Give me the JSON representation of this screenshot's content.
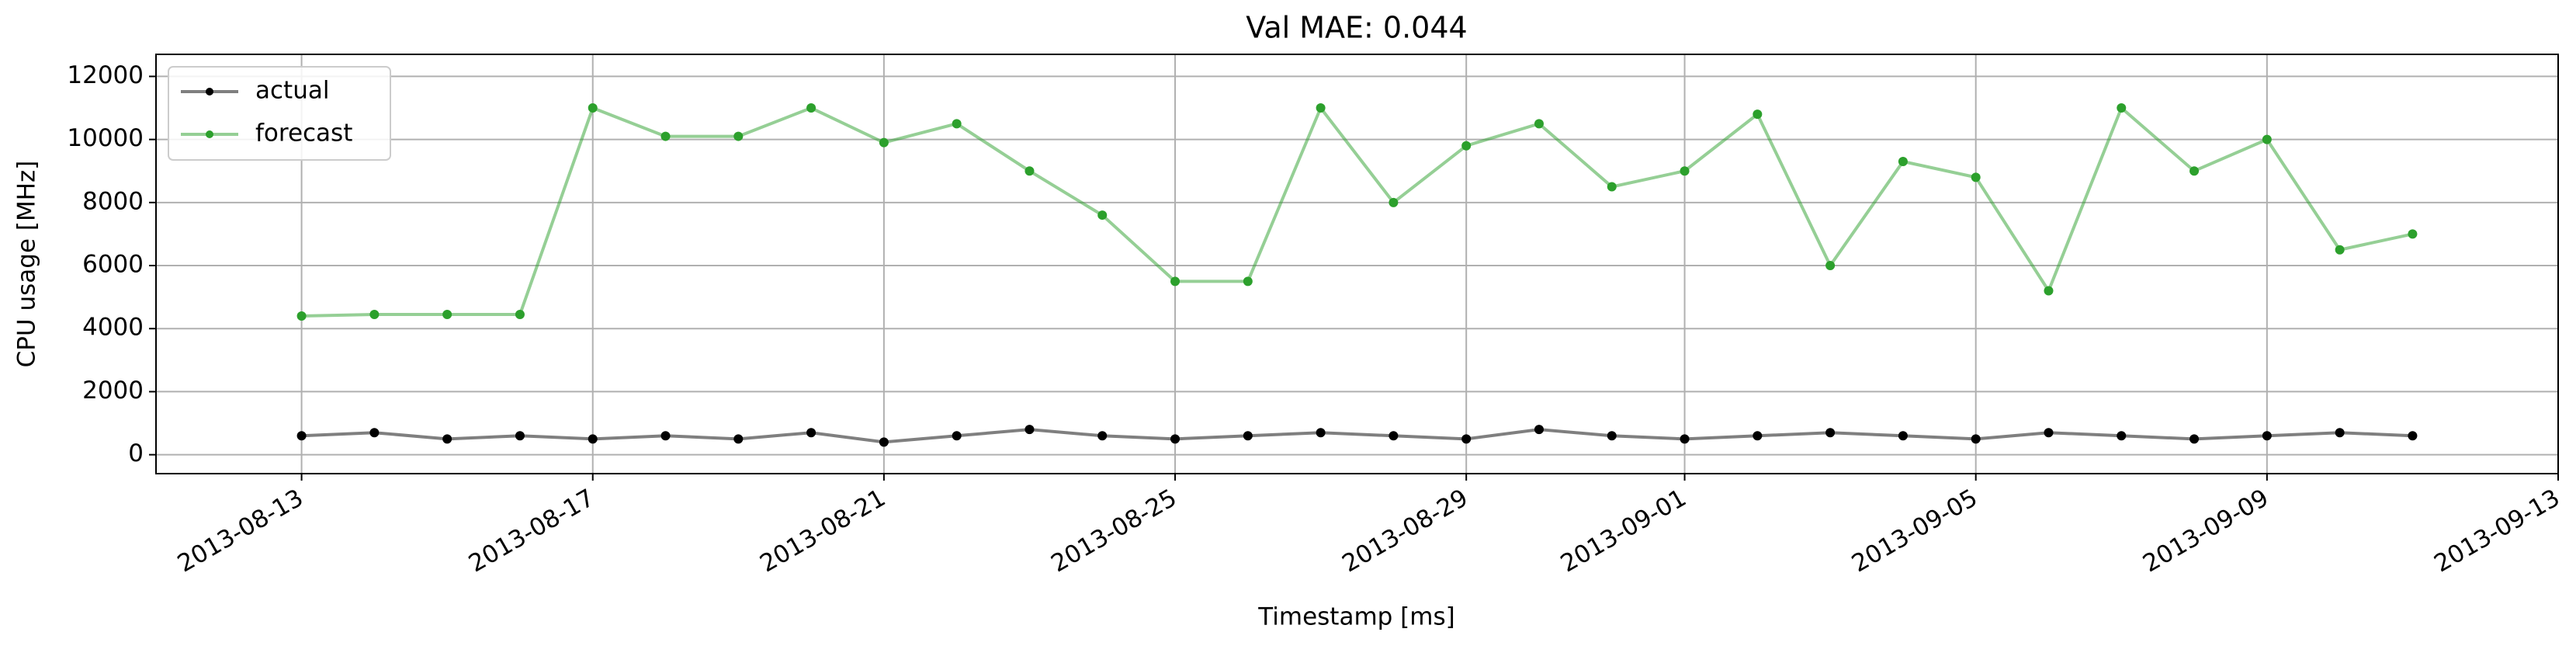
{
  "chart_data": {
    "type": "line",
    "title": "Val MAE: 0.044",
    "xlabel": "Timestamp [ms]",
    "ylabel": "CPU usage [MHz]",
    "x": [
      "2013-08-13",
      "2013-08-14",
      "2013-08-15",
      "2013-08-16",
      "2013-08-17",
      "2013-08-18",
      "2013-08-19",
      "2013-08-20",
      "2013-08-21",
      "2013-08-22",
      "2013-08-23",
      "2013-08-24",
      "2013-08-25",
      "2013-08-26",
      "2013-08-27",
      "2013-08-28",
      "2013-08-29",
      "2013-08-30",
      "2013-08-31",
      "2013-09-01",
      "2013-09-02",
      "2013-09-03",
      "2013-09-04",
      "2013-09-05",
      "2013-09-06",
      "2013-09-07",
      "2013-09-08",
      "2013-09-09",
      "2013-09-10",
      "2013-09-11"
    ],
    "series": [
      {
        "name": "actual",
        "color": "#000000",
        "values": [
          600,
          700,
          500,
          600,
          500,
          600,
          500,
          700,
          400,
          600,
          800,
          600,
          500,
          600,
          700,
          600,
          500,
          800,
          600,
          500,
          600,
          700,
          600,
          500,
          700,
          600,
          500,
          600,
          700,
          600
        ]
      },
      {
        "name": "forecast",
        "color": "#2ca02c",
        "values": [
          4400,
          4450,
          4450,
          4450,
          11000,
          10100,
          10100,
          11000,
          9900,
          10500,
          9000,
          7600,
          5500,
          5500,
          11000,
          8000,
          9800,
          10500,
          8500,
          9000,
          10800,
          6000,
          9300,
          8800,
          5200,
          11000,
          9000,
          10000,
          6500,
          7000
        ]
      }
    ],
    "xlim": [
      "2013-08-11",
      "2013-09-13"
    ],
    "xticks": [
      "2013-08-13",
      "2013-08-17",
      "2013-08-21",
      "2013-08-25",
      "2013-08-29",
      "2013-09-01",
      "2013-09-05",
      "2013-09-09",
      "2013-09-13"
    ],
    "ylim": [
      -600,
      12700
    ],
    "yticks": [
      0,
      2000,
      4000,
      6000,
      8000,
      10000,
      12000
    ],
    "grid": true,
    "legend": "upper left"
  }
}
